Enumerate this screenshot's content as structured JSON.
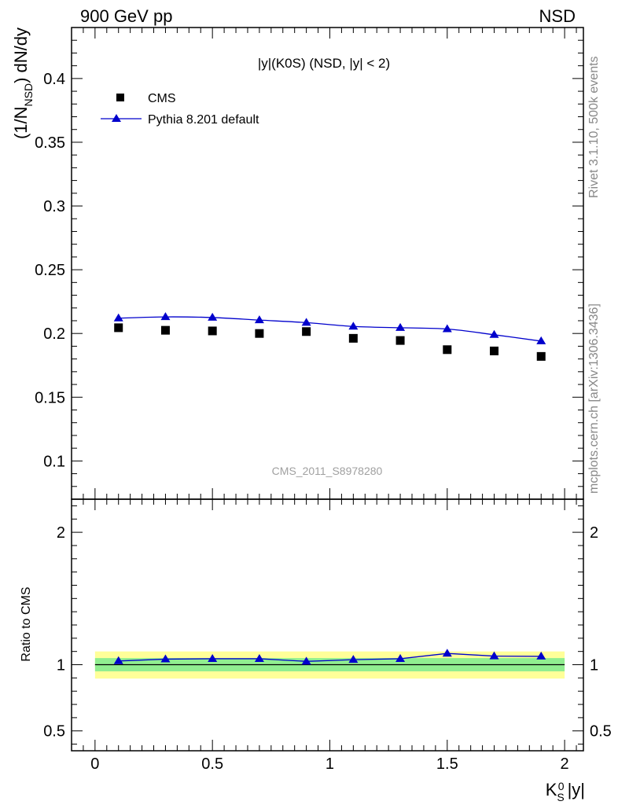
{
  "header": {
    "left": "900 GeV pp",
    "right": "NSD"
  },
  "side_text": {
    "rivet": "Rivet 3.1.10,  500k events",
    "source": "mcplots.cern.ch [arXiv:1306.3436]"
  },
  "watermark": "CMS_2011_S8978280",
  "chart_data": [
    {
      "type": "scatter",
      "title": "|y|(K0S) (NSD, |y| < 2)",
      "ylabel": "(1/N_NSD) dN/dy",
      "xlim": [
        -0.1,
        2.08
      ],
      "ylim": [
        0.07,
        0.44
      ],
      "y_ticks": [
        "0.1",
        "0.15",
        "0.2",
        "0.25",
        "0.3",
        "0.35",
        "0.4"
      ],
      "legend_position": "top-left",
      "series": [
        {
          "name": "CMS",
          "marker": "square",
          "color": "#000000",
          "x": [
            0.1,
            0.3,
            0.5,
            0.7,
            0.9,
            1.1,
            1.3,
            1.5,
            1.7,
            1.9
          ],
          "y": [
            0.2045,
            0.2025,
            0.202,
            0.2,
            0.2015,
            0.1962,
            0.1945,
            0.1873,
            0.1863,
            0.182
          ]
        },
        {
          "name": "Pythia 8.201 default",
          "marker": "triangle",
          "color": "#0000cc",
          "x": [
            0.1,
            0.3,
            0.5,
            0.7,
            0.9,
            1.1,
            1.3,
            1.5,
            1.7,
            1.9
          ],
          "y": [
            0.212,
            0.213,
            0.2125,
            0.2105,
            0.2085,
            0.2055,
            0.2045,
            0.2035,
            0.199,
            0.194
          ]
        }
      ]
    },
    {
      "type": "line",
      "ylabel": "Ratio to CMS",
      "xlabel": "K_S^0 |y|",
      "xlim": [
        -0.1,
        2.08
      ],
      "ylim": [
        0.35,
        2.25
      ],
      "y_ticks": [
        "0.5",
        "1",
        "2"
      ],
      "x_ticks": [
        "0",
        "0.5",
        "1",
        "1.5",
        "2"
      ],
      "bands": {
        "inner": {
          "low": 0.95,
          "high": 1.05,
          "color": "#90ee90"
        },
        "outer": {
          "low": 0.895,
          "high": 1.1,
          "color": "#ffff99"
        }
      },
      "series": [
        {
          "name": "Pythia 8.201 default",
          "color": "#0000cc",
          "x": [
            0.1,
            0.3,
            0.5,
            0.7,
            0.9,
            1.1,
            1.3,
            1.5,
            1.7,
            1.9
          ],
          "y": [
            1.028,
            1.042,
            1.045,
            1.045,
            1.025,
            1.038,
            1.045,
            1.085,
            1.065,
            1.063
          ]
        }
      ]
    }
  ]
}
